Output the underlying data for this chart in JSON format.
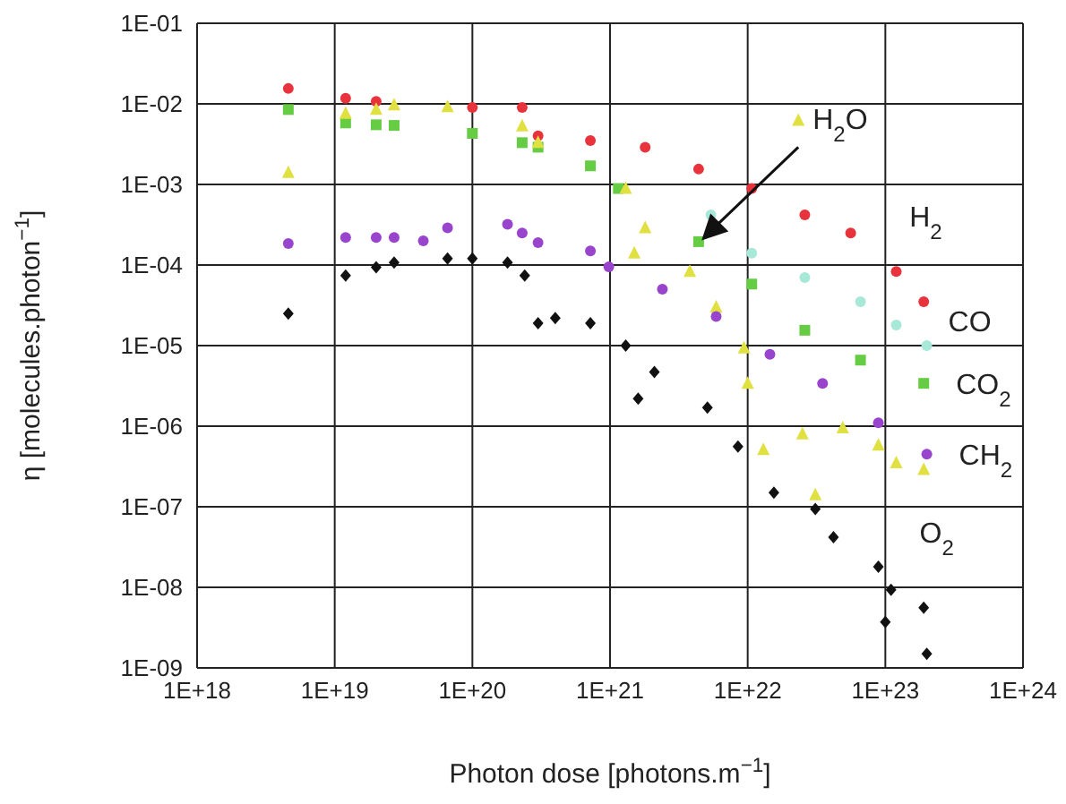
{
  "chart_data": {
    "type": "scatter",
    "xlabel": "Photon dose [photons.m$^{−1}$]",
    "ylabel": "η [molecules.photon$^{−1}$]",
    "log": "xy",
    "grid": true,
    "xlim": [
      1e+18,
      1e+24
    ],
    "xticks": [
      {
        "value": 1e+18,
        "label": "1E+18"
      },
      {
        "value": 1e+19,
        "label": "1E+19"
      },
      {
        "value": 1e+20,
        "label": "1E+20"
      },
      {
        "value": 1e+21,
        "label": "1E+21"
      },
      {
        "value": 1e+22,
        "label": "1E+22"
      },
      {
        "value": 1e+23,
        "label": "1E+23"
      },
      {
        "value": 1e+24,
        "label": "1E+24"
      }
    ],
    "ylim": [
      1e-09,
      0.1
    ],
    "yticks": [
      {
        "value": 1e-09,
        "label": "1E-09"
      },
      {
        "value": 1e-08,
        "label": "1E-08"
      },
      {
        "value": 1e-07,
        "label": "1E-07"
      },
      {
        "value": 1e-06,
        "label": "1E-06"
      },
      {
        "value": 1e-05,
        "label": "1E-05"
      },
      {
        "value": 0.0001,
        "label": "1E-04"
      },
      {
        "value": 0.001,
        "label": "1E-03"
      },
      {
        "value": 0.01,
        "label": "1E-02"
      },
      {
        "value": 0.1,
        "label": "1E-01"
      }
    ],
    "series": [
      {
        "name": "H$_{2}$",
        "color": "#e8323c",
        "marker": "circle",
        "x": [
          4.6e+18,
          1.2e+19,
          2e+19,
          1e+20,
          2.3e+20,
          3e+20,
          7.2e+20,
          1.8e+21,
          4.4e+21,
          1.07e+22,
          2.6e+22,
          5.6e+22,
          1.2e+23,
          1.9e+23
        ],
        "values": [
          0.0155,
          0.0117,
          0.0107,
          0.009,
          0.009,
          0.004,
          0.0035,
          0.0029,
          0.00155,
          0.00089,
          0.00042,
          0.00025,
          8.3e-05,
          3.5e-05
        ]
      },
      {
        "name": "CO",
        "color": "#a8e8d8",
        "marker": "circle",
        "x": [
          5.4e+21,
          1.07e+22,
          2.6e+22,
          6.6e+22,
          1.2e+23,
          2e+23
        ],
        "values": [
          0.00042,
          0.00014,
          7e-05,
          3.5e-05,
          1.8e-05,
          1e-05
        ]
      },
      {
        "name": "CO$_{2}$",
        "color": "#66cc44",
        "marker": "square",
        "x": [
          4.6e+18,
          1.2e+19,
          2e+19,
          2.7e+19,
          1e+20,
          2.3e+20,
          3e+20,
          7.2e+20,
          1.15e+21,
          4.4e+21,
          1.07e+22,
          2.6e+22,
          6.6e+22,
          1.9e+23
        ],
        "values": [
          0.0085,
          0.0058,
          0.0055,
          0.0054,
          0.0043,
          0.0033,
          0.0029,
          0.0017,
          0.00089,
          0.000195,
          5.8e-05,
          1.55e-05,
          6.6e-06,
          3.4e-06
        ]
      },
      {
        "name": "H$_{2}$O",
        "color": "#e0e040",
        "marker": "triangle",
        "x": [
          4.6e+18,
          1.2e+19,
          2e+19,
          2.7e+19,
          6.6e+19,
          2.3e+20,
          3e+20,
          1.3e+21,
          1.5e+21,
          1.8e+21,
          3.8e+21,
          5.9e+21,
          9.4e+21,
          1e+22,
          1.3e+22,
          2.5e+22,
          3.1e+22,
          4.9e+22,
          8.9e+22,
          1.2e+23,
          1.9e+23
        ],
        "values": [
          0.0014,
          0.0076,
          0.0085,
          0.0097,
          0.0092,
          0.0053,
          0.0033,
          0.00089,
          0.00014,
          0.00029,
          8.3e-05,
          3e-05,
          9.3e-06,
          3.4e-06,
          5.1e-07,
          8e-07,
          1.4e-07,
          9.5e-07,
          5.8e-07,
          3.5e-07,
          2.9e-07
        ]
      },
      {
        "name": "CH$_{2}$",
        "color": "#9944cc",
        "marker": "circle",
        "x": [
          4.6e+18,
          1.2e+19,
          2e+19,
          2.7e+19,
          4.4e+19,
          6.6e+19,
          1.8e+20,
          2.3e+20,
          3e+20,
          7.2e+20,
          9.8e+20,
          2.4e+21,
          5.9e+21,
          1.45e+22,
          3.5e+22,
          8.9e+22,
          2e+23
        ],
        "values": [
          0.000185,
          0.00022,
          0.00022,
          0.00022,
          0.0002,
          0.00029,
          0.00032,
          0.00025,
          0.00019,
          0.00015,
          9.5e-05,
          5e-05,
          2.3e-05,
          7.8e-06,
          3.4e-06,
          1.1e-06,
          4.5e-07
        ]
      },
      {
        "name": "O$_{2}$",
        "color": "#111111",
        "marker": "diamond",
        "x": [
          4.6e+18,
          1.2e+19,
          2e+19,
          2.7e+19,
          6.6e+19,
          1e+20,
          1.8e+20,
          2.4e+20,
          3e+20,
          4e+20,
          7.2e+20,
          1.3e+21,
          1.6e+21,
          2.1e+21,
          5.1e+21,
          8.5e+21,
          1.55e+22,
          3.1e+22,
          4.2e+22,
          8.9e+22,
          1e+23,
          1.1e+23,
          1.9e+23,
          2e+23
        ],
        "values": [
          2.5e-05,
          7.4e-05,
          9.4e-05,
          0.000107,
          0.00012,
          0.00012,
          0.000107,
          7.4e-05,
          1.9e-05,
          2.2e-05,
          1.9e-05,
          1e-05,
          2.2e-06,
          4.7e-06,
          1.7e-06,
          5.6e-07,
          1.5e-07,
          9.4e-08,
          4.2e-08,
          1.8e-08,
          3.7e-09,
          9.3e-09,
          5.6e-09,
          1.5e-09
        ]
      }
    ]
  }
}
